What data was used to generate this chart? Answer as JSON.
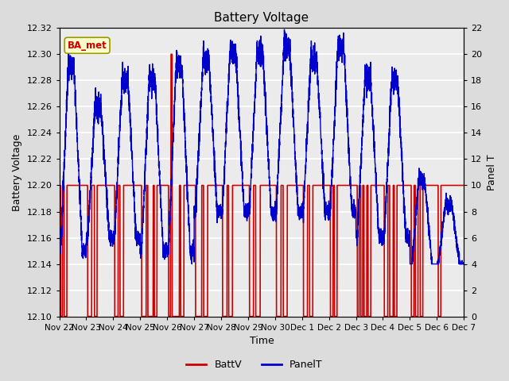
{
  "title": "Battery Voltage",
  "xlabel": "Time",
  "ylabel_left": "Battery Voltage",
  "ylabel_right": "Panel T",
  "ylim_left": [
    12.1,
    12.32
  ],
  "ylim_right": [
    0,
    22
  ],
  "yticks_left": [
    12.1,
    12.12,
    12.14,
    12.16,
    12.18,
    12.2,
    12.22,
    12.24,
    12.26,
    12.28,
    12.3,
    12.32
  ],
  "yticks_right": [
    0,
    2,
    4,
    6,
    8,
    10,
    12,
    14,
    16,
    18,
    20,
    22
  ],
  "xtick_labels": [
    "Nov 22",
    "Nov 23",
    "Nov 24",
    "Nov 25",
    "Nov 26",
    "Nov 27",
    "Nov 28",
    "Nov 29",
    "Nov 30",
    "Dec 1",
    "Dec 2",
    "Dec 3",
    "Dec 4",
    "Dec 5",
    "Dec 6",
    "Dec 7"
  ],
  "background_color": "#dcdcdc",
  "plot_bg_color": "#ebebeb",
  "legend_label_box": "BA_met",
  "legend_label_box_color": "#ffffcc",
  "legend_label_box_border": "#999900",
  "battv_color": "#cc0000",
  "panelt_color": "#0000cc",
  "grid_color": "white",
  "battv_high": 12.2,
  "battv_low": 12.1,
  "n_days": 15,
  "figsize": [
    6.4,
    4.8
  ],
  "dpi": 100
}
